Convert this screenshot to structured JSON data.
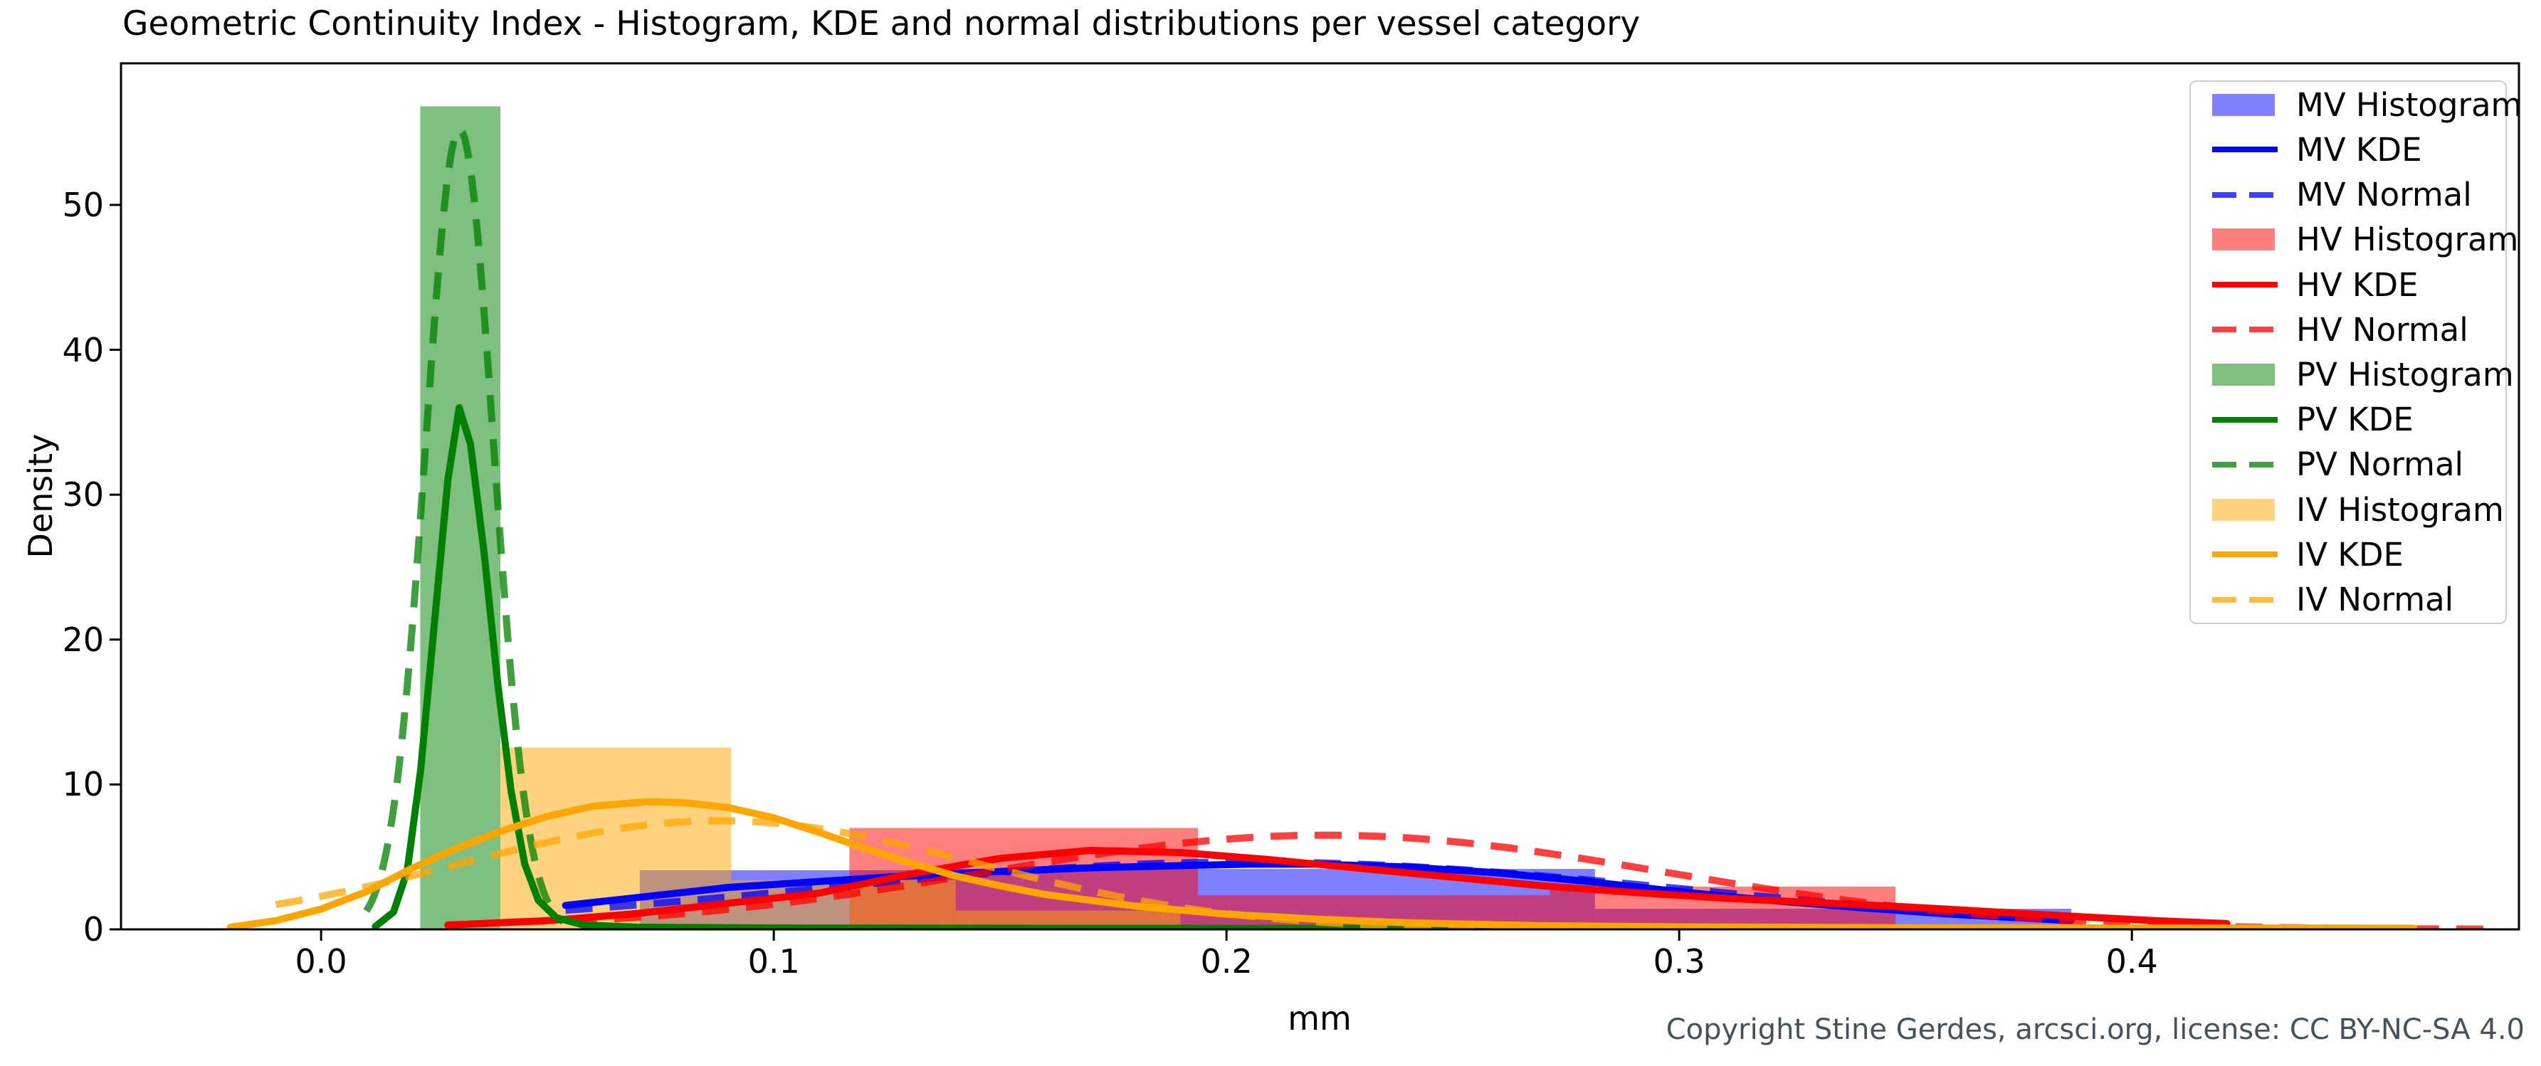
{
  "title": "Geometric Continuity Index - Histogram, KDE and normal distributions per vessel category",
  "axes": {
    "xlabel": "mm",
    "ylabel": "Density",
    "xticks": [
      {
        "value": 0.0,
        "label": "0.0"
      },
      {
        "value": 0.1,
        "label": "0.1"
      },
      {
        "value": 0.2,
        "label": "0.2"
      },
      {
        "value": 0.3,
        "label": "0.3"
      },
      {
        "value": 0.4,
        "label": "0.4"
      }
    ],
    "yticks": [
      {
        "value": 0,
        "label": "0"
      },
      {
        "value": 10,
        "label": "10"
      },
      {
        "value": 20,
        "label": "20"
      },
      {
        "value": 30,
        "label": "30"
      },
      {
        "value": 40,
        "label": "40"
      },
      {
        "value": 50,
        "label": "50"
      }
    ]
  },
  "copyright": "Copyright Stine Gerdes, arcsci.org, license: CC BY-NC-SA 4.0",
  "colors": {
    "mv": "#0000ff",
    "hv": "#ff0000",
    "pv": "#008000",
    "iv": "#ffa500",
    "hist_alpha": 0.5,
    "normal_alpha": 0.75
  },
  "legend": {
    "entries": [
      {
        "label": "MV Histogram",
        "swatch": "patch",
        "color": "mv"
      },
      {
        "label": "MV KDE",
        "swatch": "line",
        "color": "mv"
      },
      {
        "label": "MV Normal",
        "swatch": "dash",
        "color": "mv"
      },
      {
        "label": "HV Histogram",
        "swatch": "patch",
        "color": "hv"
      },
      {
        "label": "HV KDE",
        "swatch": "line",
        "color": "hv"
      },
      {
        "label": "HV Normal",
        "swatch": "dash",
        "color": "hv"
      },
      {
        "label": "PV Histogram",
        "swatch": "patch",
        "color": "pv"
      },
      {
        "label": "PV KDE",
        "swatch": "line",
        "color": "pv"
      },
      {
        "label": "PV Normal",
        "swatch": "dash",
        "color": "pv"
      },
      {
        "label": "IV Histogram",
        "swatch": "patch",
        "color": "iv"
      },
      {
        "label": "IV KDE",
        "swatch": "line",
        "color": "iv"
      },
      {
        "label": "IV Normal",
        "swatch": "dash",
        "color": "iv"
      }
    ]
  },
  "chart_data": {
    "type": "histogram+kde+normal",
    "title": "Geometric Continuity Index - Histogram, KDE and normal distributions per vessel category",
    "xlabel": "mm",
    "ylabel": "Density",
    "xlim": [
      -0.0442,
      0.4855
    ],
    "ylim": [
      0,
      59.77
    ],
    "grid": false,
    "legend_position": "upper right",
    "series": [
      {
        "name": "MV",
        "color": "mv",
        "histogram": {
          "bins": [
            [
              0.0704,
              0.1407,
              4.08
            ],
            [
              0.1407,
              0.2814,
              4.17
            ],
            [
              0.2814,
              0.3866,
              1.42
            ]
          ]
        },
        "kde": {
          "points": [
            [
              0.054,
              1.65
            ],
            [
              0.07,
              2.2
            ],
            [
              0.09,
              2.9
            ],
            [
              0.11,
              3.3
            ],
            [
              0.13,
              3.7
            ],
            [
              0.15,
              4.0
            ],
            [
              0.17,
              4.25
            ],
            [
              0.19,
              4.4
            ],
            [
              0.205,
              4.5
            ],
            [
              0.22,
              4.5
            ],
            [
              0.24,
              4.3
            ],
            [
              0.26,
              3.9
            ],
            [
              0.28,
              3.3
            ],
            [
              0.3,
              2.6
            ],
            [
              0.32,
              2.0
            ],
            [
              0.34,
              1.5
            ],
            [
              0.36,
              1.05
            ],
            [
              0.3866,
              0.6
            ]
          ]
        },
        "normal": {
          "mean": 0.205,
          "sigma": 0.095,
          "peak": 4.65,
          "range": [
            0.054,
            0.3866
          ]
        }
      },
      {
        "name": "HV",
        "color": "hv",
        "histogram": {
          "bins": [
            [
              0.1167,
              0.1937,
              7.0
            ],
            [
              0.1937,
              0.2715,
              2.36
            ],
            [
              0.2715,
              0.3478,
              2.95
            ]
          ]
        },
        "kde": {
          "points": [
            [
              0.028,
              0.3
            ],
            [
              0.05,
              0.6
            ],
            [
              0.07,
              1.1
            ],
            [
              0.09,
              1.8
            ],
            [
              0.11,
              2.5
            ],
            [
              0.13,
              3.8
            ],
            [
              0.15,
              4.9
            ],
            [
              0.17,
              5.45
            ],
            [
              0.19,
              5.3
            ],
            [
              0.21,
              4.8
            ],
            [
              0.23,
              4.2
            ],
            [
              0.25,
              3.6
            ],
            [
              0.27,
              3.0
            ],
            [
              0.29,
              2.55
            ],
            [
              0.31,
              2.15
            ],
            [
              0.33,
              1.85
            ],
            [
              0.35,
              1.55
            ],
            [
              0.37,
              1.2
            ],
            [
              0.39,
              0.85
            ],
            [
              0.405,
              0.6
            ],
            [
              0.421,
              0.4
            ]
          ]
        },
        "normal": {
          "mean": 0.222,
          "sigma": 0.075,
          "peak": 6.5,
          "range": [
            0.055,
            0.478
          ]
        }
      },
      {
        "name": "PV",
        "color": "pv",
        "histogram": {
          "bins": [
            [
              0.0219,
              0.0396,
              56.8
            ]
          ]
        },
        "kde": {
          "points": [
            [
              0.012,
              0.2
            ],
            [
              0.016,
              1.2
            ],
            [
              0.019,
              4.0
            ],
            [
              0.022,
              11.0
            ],
            [
              0.025,
              21.0
            ],
            [
              0.028,
              31.0
            ],
            [
              0.0305,
              36.0
            ],
            [
              0.033,
              33.5
            ],
            [
              0.036,
              26.0
            ],
            [
              0.039,
              17.0
            ],
            [
              0.042,
              9.5
            ],
            [
              0.045,
              4.5
            ],
            [
              0.048,
              2.0
            ],
            [
              0.052,
              0.8
            ],
            [
              0.058,
              0.3
            ],
            [
              0.07,
              0.15
            ],
            [
              0.1,
              0.1
            ],
            [
              0.15,
              0.08
            ],
            [
              0.2,
              0.07
            ],
            [
              0.277,
              0.05
            ]
          ]
        },
        "normal": {
          "mean": 0.0306,
          "sigma": 0.0075,
          "peak": 55.2,
          "range": [
            0.01,
            0.0535
          ]
        }
      },
      {
        "name": "IV",
        "color": "iv",
        "histogram": {
          "bins": [
            [
              0.0396,
              0.0906,
              12.55
            ],
            [
              0.0906,
              0.1402,
              3.4
            ],
            [
              0.1402,
              0.1898,
              1.3
            ]
          ]
        },
        "kde": {
          "points": [
            [
              -0.02,
              0.15
            ],
            [
              -0.01,
              0.6
            ],
            [
              0.0,
              1.4
            ],
            [
              0.01,
              2.6
            ],
            [
              0.02,
              4.2
            ],
            [
              0.03,
              5.6
            ],
            [
              0.04,
              6.8
            ],
            [
              0.05,
              7.8
            ],
            [
              0.06,
              8.5
            ],
            [
              0.072,
              8.8
            ],
            [
              0.08,
              8.75
            ],
            [
              0.09,
              8.4
            ],
            [
              0.1,
              7.7
            ],
            [
              0.11,
              6.7
            ],
            [
              0.12,
              5.6
            ],
            [
              0.13,
              4.6
            ],
            [
              0.14,
              3.7
            ],
            [
              0.15,
              3.0
            ],
            [
              0.16,
              2.4
            ],
            [
              0.18,
              1.6
            ],
            [
              0.2,
              1.05
            ],
            [
              0.22,
              0.7
            ],
            [
              0.24,
              0.45
            ],
            [
              0.27,
              0.25
            ],
            [
              0.3,
              0.17
            ],
            [
              0.35,
              0.12
            ],
            [
              0.4,
              0.1
            ],
            [
              0.4623,
              0.08
            ]
          ]
        },
        "normal": {
          "mean": 0.088,
          "sigma": 0.057,
          "peak": 7.5,
          "range": [
            -0.01,
            0.3
          ]
        }
      }
    ]
  }
}
